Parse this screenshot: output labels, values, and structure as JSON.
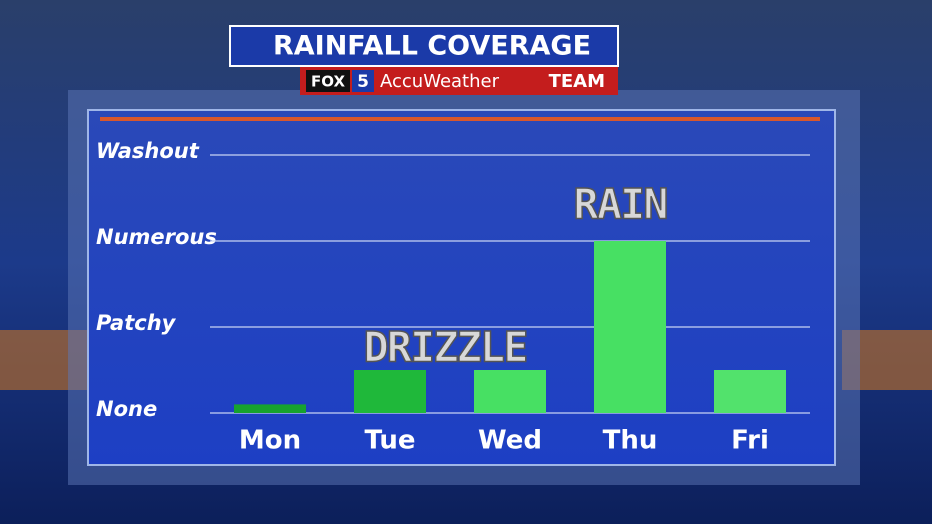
{
  "branding": {
    "network": "FOX",
    "channel": "5",
    "brand": "AccuWeather",
    "team": "TEAM"
  },
  "chart_data": {
    "type": "bar",
    "title": "RAINFALL COVERAGE",
    "categories": [
      "Mon",
      "Tue",
      "Wed",
      "Thu",
      "Fri"
    ],
    "values": [
      0.1,
      0.5,
      0.5,
      2,
      0.5
    ],
    "colors": [
      "#17a32e",
      "#1fb83a",
      "#47e063",
      "#47e063",
      "#52e26c"
    ],
    "ylim": [
      0,
      3
    ],
    "yticks": [
      {
        "value": 0,
        "label": "None"
      },
      {
        "value": 1,
        "label": "Patchy"
      },
      {
        "value": 2,
        "label": "Numerous"
      },
      {
        "value": 3,
        "label": "Washout"
      }
    ],
    "grid": true,
    "annotations": [
      "DRIZZLE",
      "RAIN"
    ]
  }
}
